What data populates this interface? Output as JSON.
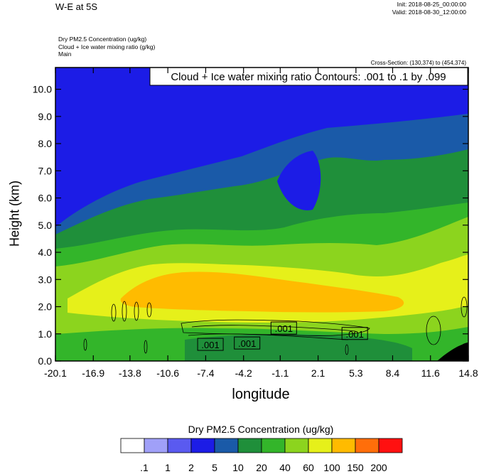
{
  "header": {
    "title": "W-E at 5S",
    "init": "Init: 2018-08-25_00:00:00",
    "valid": "Valid: 2018-08-30_12:00:00",
    "desc_line1": "Dry PM2.5 Concentration   (ug/kg)",
    "desc_line2": "Cloud + Ice water mixing ratio   (g/kg)",
    "desc_line3": "Main",
    "cross_section": "Cross-Section: (130,374) to (454,374)"
  },
  "chart_data": {
    "type": "heatmap",
    "title": "W-E at 5S",
    "xlabel": "longitude",
    "ylabel": "Height (km)",
    "xlim": [
      -20.1,
      14.8
    ],
    "ylim": [
      0.0,
      10.8
    ],
    "x_ticks": [
      "-20.1",
      "-16.9",
      "-13.8",
      "-10.6",
      "-7.4",
      "-4.2",
      "-1.1",
      "2.1",
      "5.3",
      "8.4",
      "11.6",
      "14.8"
    ],
    "y_ticks": [
      "0.0",
      "1.0",
      "2.0",
      "3.0",
      "4.0",
      "5.0",
      "6.0",
      "7.0",
      "8.0",
      "9.0",
      "10.0"
    ],
    "contour_title": "Cloud + Ice water mixing ratio Contours: .001 to .1 by .099",
    "contour_labels": [
      {
        "text": ".001",
        "x": -7.0,
        "y": 0.6
      },
      {
        "text": ".001",
        "x": -3.9,
        "y": 0.65
      },
      {
        "text": ".001",
        "x": -0.8,
        "y": 1.2
      },
      {
        "text": ".001",
        "x": 5.2,
        "y": 1.0
      }
    ],
    "colorbar": {
      "title": "Dry PM2.5 Concentration  (ug/kg)",
      "levels": [
        ".1",
        "1",
        "2",
        "5",
        "10",
        "20",
        "40",
        "60",
        "100",
        "150",
        "200"
      ],
      "colors": [
        "#ffffff",
        "#a0a0f8",
        "#5a5af0",
        "#1c1ce6",
        "#1a5aa8",
        "#1f8f3a",
        "#33b52a",
        "#8cd41e",
        "#e6f01a",
        "#ffbb00",
        "#ff6e0a",
        "#ff1010"
      ]
    },
    "field_regions": [
      {
        "level": "5",
        "color": "#1c1ce6",
        "description": "upper background 6.5-10.8 km"
      },
      {
        "level": "10",
        "color": "#1a5aa8",
        "description": "transition band"
      },
      {
        "level": "20",
        "color": "#1f8f3a",
        "description": "mid layer 4-6 km and near surface"
      },
      {
        "level": "40",
        "color": "#33b52a",
        "description": "band around 3.5-4.5 km"
      },
      {
        "level": "60",
        "color": "#8cd41e",
        "description": "band 2-4 km"
      },
      {
        "level": "100",
        "color": "#e6f01a",
        "description": "layer 1.5-3.5 km"
      },
      {
        "level": "150",
        "color": "#ffbb00",
        "description": "core 2-3 km from -13 to 5"
      }
    ]
  }
}
